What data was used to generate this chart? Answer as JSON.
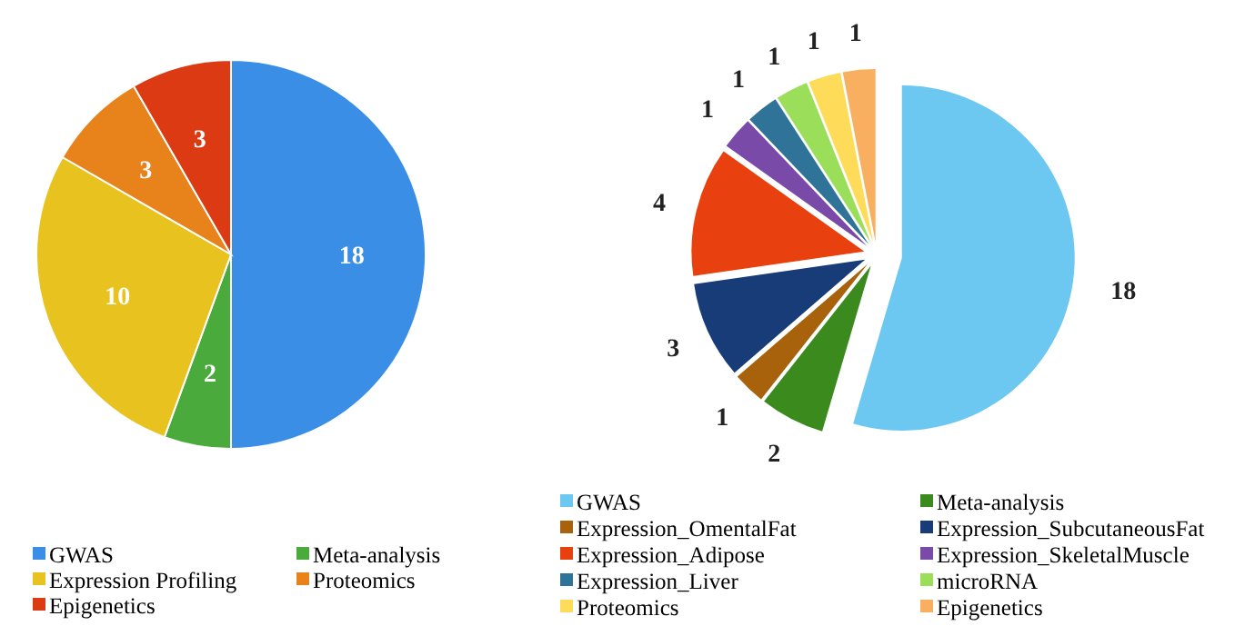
{
  "chart_data": [
    {
      "type": "pie",
      "categories": [
        "GWAS",
        "Meta-analysis",
        "Expression Profiling",
        "Proteomics",
        "Epigenetics"
      ],
      "values": [
        18,
        2,
        10,
        3,
        3
      ],
      "colors": [
        "#3a8ee6",
        "#4aaa3c",
        "#e8c21e",
        "#e8821a",
        "#dc3a12"
      ],
      "data_labels": true,
      "legend": "bottom"
    },
    {
      "type": "pie",
      "categories": [
        "GWAS",
        "Meta-analysis",
        "Expression_OmentalFat",
        "Expression_SubcutaneousFat",
        "Expression_Adipose",
        "Expression_SkeletalMuscle",
        "Expression_Liver",
        "microRNA",
        "Proteomics",
        "Epigenetics"
      ],
      "values": [
        18,
        2,
        1,
        3,
        4,
        1,
        1,
        1,
        1,
        1
      ],
      "colors": [
        "#6cc8f0",
        "#3a8a1e",
        "#a8620c",
        "#183c78",
        "#e8400e",
        "#7a4aa8",
        "#2f7498",
        "#9ade5a",
        "#fedc5a",
        "#f8b060"
      ],
      "data_labels": true,
      "legend": "bottom"
    }
  ]
}
